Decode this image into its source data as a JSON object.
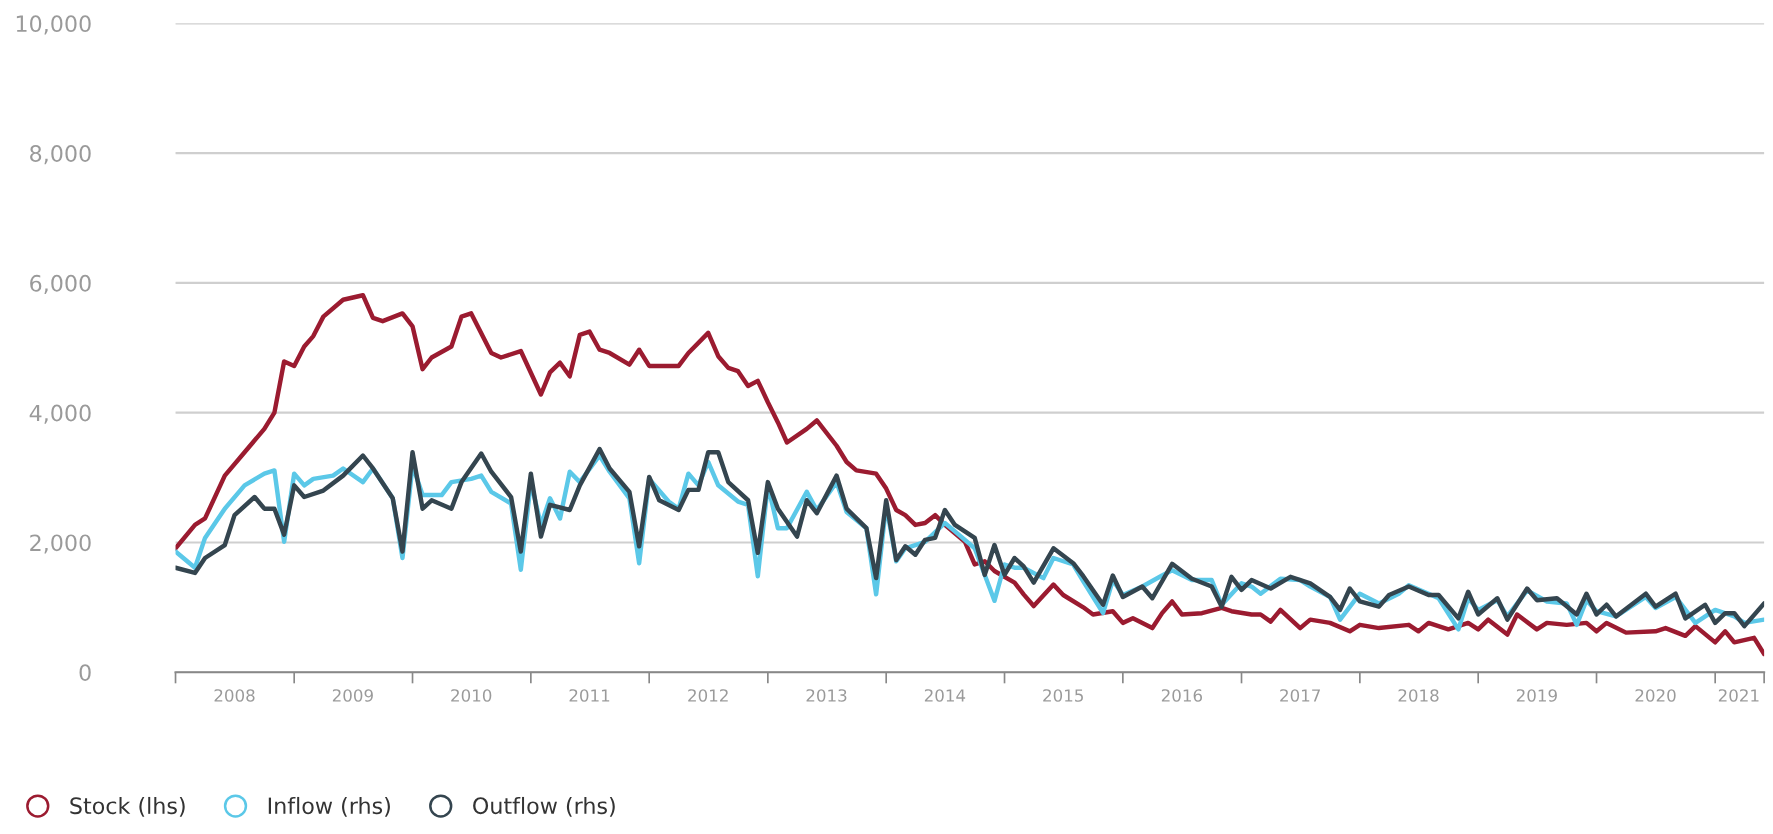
{
  "chart_data": {
    "type": "line",
    "xlim": [
      "2008-01-01",
      "2021-06-01"
    ],
    "xticks": [
      {
        "value": "2008-01-01",
        "label": null
      },
      {
        "value": "2008-07-01",
        "label": "2008"
      },
      {
        "value": "2009-01-01",
        "label": null
      },
      {
        "value": "2009-07-01",
        "label": "2009"
      },
      {
        "value": "2010-01-01",
        "label": null
      },
      {
        "value": "2010-07-01",
        "label": "2010"
      },
      {
        "value": "2011-01-01",
        "label": null
      },
      {
        "value": "2011-07-01",
        "label": "2011"
      },
      {
        "value": "2012-01-01",
        "label": null
      },
      {
        "value": "2012-07-01",
        "label": "2012"
      },
      {
        "value": "2013-01-01",
        "label": null
      },
      {
        "value": "2013-07-01",
        "label": "2013"
      },
      {
        "value": "2014-01-01",
        "label": null
      },
      {
        "value": "2014-07-01",
        "label": "2014"
      },
      {
        "value": "2015-01-01",
        "label": null
      },
      {
        "value": "2015-07-01",
        "label": "2015"
      },
      {
        "value": "2016-01-01",
        "label": null
      },
      {
        "value": "2016-07-01",
        "label": "2016"
      },
      {
        "value": "2017-01-01",
        "label": null
      },
      {
        "value": "2017-07-01",
        "label": "2017"
      },
      {
        "value": "2018-01-01",
        "label": null
      },
      {
        "value": "2018-07-01",
        "label": "2018"
      },
      {
        "value": "2019-01-01",
        "label": null
      },
      {
        "value": "2019-07-01",
        "label": "2019"
      },
      {
        "value": "2020-01-01",
        "label": null
      },
      {
        "value": "2020-07-01",
        "label": "2020"
      },
      {
        "value": "2021-01-01",
        "label": null
      },
      {
        "value": "2021-03-15",
        "label": "2021"
      },
      {
        "value": "2021-06-01",
        "label": null
      }
    ],
    "ylim": [
      0,
      10000
    ],
    "yticks": [
      {
        "value": 0,
        "label": "0"
      },
      {
        "value": 2000,
        "label": "2,000"
      },
      {
        "value": 4000,
        "label": "4,000"
      },
      {
        "value": 6000,
        "label": "6,000"
      },
      {
        "value": 8000,
        "label": "8,000"
      },
      {
        "value": 10000,
        "label": "10,000"
      }
    ],
    "grid": "y",
    "legend": "bottom left",
    "marker": "none",
    "line_style": "solid",
    "series": [
      {
        "name": "Stock (lhs)",
        "color": "#9b1b30",
        "x": [
          "2008-01",
          "2008-03",
          "2008-04",
          "2008-06",
          "2008-08",
          "2008-10",
          "2008-11",
          "2008-12",
          "2009-01",
          "2009-02",
          "2009-03",
          "2009-04",
          "2009-06",
          "2009-08",
          "2009-09",
          "2009-10",
          "2009-12",
          "2010-01",
          "2010-02",
          "2010-03",
          "2010-05",
          "2010-06",
          "2010-07",
          "2010-09",
          "2010-10",
          "2010-12",
          "2011-02",
          "2011-03",
          "2011-04",
          "2011-05",
          "2011-06",
          "2011-07",
          "2011-08",
          "2011-09",
          "2011-11",
          "2011-12",
          "2012-01",
          "2012-04",
          "2012-05",
          "2012-07",
          "2012-08",
          "2012-09",
          "2012-10",
          "2012-11",
          "2012-12",
          "2013-01",
          "2013-02",
          "2013-03",
          "2013-05",
          "2013-06",
          "2013-08",
          "2013-09",
          "2013-10",
          "2013-12",
          "2014-01",
          "2014-02",
          "2014-03",
          "2014-04",
          "2014-05",
          "2014-06",
          "2014-07",
          "2014-09",
          "2014-10",
          "2014-11",
          "2014-12",
          "2015-02",
          "2015-03",
          "2015-04",
          "2015-06",
          "2015-07",
          "2015-09",
          "2015-10",
          "2015-12",
          "2016-01",
          "2016-02",
          "2016-04",
          "2016-05",
          "2016-06",
          "2016-07",
          "2016-09",
          "2016-11",
          "2016-12",
          "2017-02",
          "2017-03",
          "2017-04",
          "2017-05",
          "2017-07",
          "2017-08",
          "2017-10",
          "2017-12",
          "2018-01",
          "2018-03",
          "2018-06",
          "2018-07",
          "2018-08",
          "2018-10",
          "2018-12",
          "2019-01",
          "2019-02",
          "2019-04",
          "2019-05",
          "2019-07",
          "2019-08",
          "2019-10",
          "2019-12",
          "2020-01",
          "2020-02",
          "2020-04",
          "2020-07",
          "2020-08",
          "2020-10",
          "2020-11",
          "2021-01",
          "2021-02",
          "2021-03",
          "2021-05",
          "2021-06"
        ],
        "values": [
          1910,
          2270,
          2370,
          3030,
          3390,
          3750,
          4000,
          4790,
          4720,
          5020,
          5180,
          5480,
          5740,
          5810,
          5460,
          5410,
          5530,
          5330,
          4670,
          4850,
          5020,
          5480,
          5530,
          4920,
          4850,
          4950,
          4280,
          4620,
          4770,
          4560,
          5200,
          5250,
          4970,
          4920,
          4740,
          4970,
          4720,
          4720,
          4920,
          5230,
          4870,
          4690,
          4640,
          4410,
          4490,
          4160,
          3850,
          3540,
          3750,
          3880,
          3490,
          3240,
          3110,
          3060,
          2830,
          2500,
          2420,
          2270,
          2300,
          2420,
          2270,
          2010,
          1660,
          1710,
          1560,
          1380,
          1200,
          1020,
          1350,
          1190,
          1000,
          890,
          940,
          760,
          830,
          680,
          910,
          1090,
          890,
          910,
          990,
          940,
          890,
          890,
          780,
          960,
          680,
          810,
          760,
          630,
          730,
          680,
          730,
          630,
          760,
          660,
          760,
          660,
          810,
          580,
          890,
          660,
          760,
          730,
          760,
          630,
          760,
          610,
          630,
          680,
          560,
          710,
          460,
          630,
          460,
          530,
          280
        ]
      },
      {
        "name": "Inflow (rhs)",
        "color": "#5bc8e8",
        "x": [
          "2008-01",
          "2008-03",
          "2008-04",
          "2008-06",
          "2008-08",
          "2008-10",
          "2008-11",
          "2008-12",
          "2009-01",
          "2009-02",
          "2009-03",
          "2009-05",
          "2009-06",
          "2009-08",
          "2009-09",
          "2009-11",
          "2009-12",
          "2010-01",
          "2010-02",
          "2010-04",
          "2010-05",
          "2010-07",
          "2010-08",
          "2010-09",
          "2010-11",
          "2010-12",
          "2011-01",
          "2011-02",
          "2011-03",
          "2011-04",
          "2011-05",
          "2011-06",
          "2011-08",
          "2011-09",
          "2011-11",
          "2011-12",
          "2012-01",
          "2012-03",
          "2012-04",
          "2012-05",
          "2012-06",
          "2012-07",
          "2012-08",
          "2012-10",
          "2012-11",
          "2012-12",
          "2013-01",
          "2013-02",
          "2013-03",
          "2013-05",
          "2013-06",
          "2013-08",
          "2013-09",
          "2013-11",
          "2013-12",
          "2014-01",
          "2014-02",
          "2014-03",
          "2014-05",
          "2014-07",
          "2014-08",
          "2014-10",
          "2014-12",
          "2015-01",
          "2015-02",
          "2015-03",
          "2015-05",
          "2015-06",
          "2015-08",
          "2015-09",
          "2015-11",
          "2015-12",
          "2016-01",
          "2016-03",
          "2016-05",
          "2016-06",
          "2016-08",
          "2016-10",
          "2016-11",
          "2017-01",
          "2017-02",
          "2017-03",
          "2017-05",
          "2017-07",
          "2017-08",
          "2017-10",
          "2017-11",
          "2018-01",
          "2018-03",
          "2018-05",
          "2018-06",
          "2018-08",
          "2018-09",
          "2018-11",
          "2018-12",
          "2019-01",
          "2019-03",
          "2019-04",
          "2019-06",
          "2019-08",
          "2019-10",
          "2019-11",
          "2019-12",
          "2020-01",
          "2020-03",
          "2020-06",
          "2020-07",
          "2020-09",
          "2020-11",
          "2021-01",
          "2021-03",
          "2021-04",
          "2021-06"
        ],
        "values": [
          1860,
          1610,
          2070,
          2520,
          2880,
          3060,
          3110,
          2010,
          3060,
          2880,
          2980,
          3030,
          3140,
          2930,
          3140,
          2680,
          1760,
          3190,
          2730,
          2730,
          2930,
          2980,
          3030,
          2780,
          2600,
          1580,
          2930,
          2270,
          2680,
          2370,
          3090,
          2930,
          3340,
          3090,
          2680,
          1680,
          2980,
          2630,
          2520,
          3060,
          2880,
          3240,
          2880,
          2630,
          2580,
          1480,
          2880,
          2220,
          2220,
          2780,
          2500,
          2930,
          2470,
          2220,
          1200,
          2580,
          1710,
          1910,
          2010,
          2300,
          2170,
          1910,
          1100,
          1660,
          1610,
          1610,
          1450,
          1760,
          1660,
          1400,
          910,
          1420,
          1190,
          1320,
          1490,
          1570,
          1420,
          1420,
          1040,
          1370,
          1320,
          1210,
          1440,
          1420,
          1320,
          1160,
          810,
          1210,
          1060,
          1210,
          1340,
          1210,
          1140,
          660,
          1140,
          960,
          1110,
          860,
          1260,
          1090,
          1060,
          730,
          1110,
          940,
          860,
          1160,
          990,
          1160,
          760,
          960,
          860,
          760,
          810
        ]
      },
      {
        "name": "Outflow (rhs)",
        "color": "#34454f",
        "x": [
          "2008-01",
          "2008-03",
          "2008-04",
          "2008-06",
          "2008-07",
          "2008-09",
          "2008-10",
          "2008-11",
          "2008-12",
          "2009-01",
          "2009-02",
          "2009-04",
          "2009-06",
          "2009-08",
          "2009-09",
          "2009-11",
          "2009-12",
          "2010-01",
          "2010-02",
          "2010-03",
          "2010-05",
          "2010-06",
          "2010-08",
          "2010-09",
          "2010-11",
          "2010-12",
          "2011-01",
          "2011-02",
          "2011-03",
          "2011-05",
          "2011-06",
          "2011-08",
          "2011-09",
          "2011-11",
          "2011-12",
          "2012-01",
          "2012-02",
          "2012-04",
          "2012-05",
          "2012-06",
          "2012-07",
          "2012-08",
          "2012-09",
          "2012-11",
          "2012-12",
          "2013-01",
          "2013-02",
          "2013-04",
          "2013-05",
          "2013-06",
          "2013-08",
          "2013-09",
          "2013-11",
          "2013-12",
          "2014-01",
          "2014-02",
          "2014-03",
          "2014-04",
          "2014-05",
          "2014-06",
          "2014-07",
          "2014-08",
          "2014-10",
          "2014-11",
          "2014-12",
          "2015-01",
          "2015-02",
          "2015-03",
          "2015-04",
          "2015-06",
          "2015-08",
          "2015-09",
          "2015-11",
          "2015-12",
          "2016-01",
          "2016-03",
          "2016-04",
          "2016-06",
          "2016-08",
          "2016-10",
          "2016-11",
          "2016-12",
          "2017-01",
          "2017-02",
          "2017-04",
          "2017-06",
          "2017-08",
          "2017-10",
          "2017-11",
          "2017-12",
          "2018-01",
          "2018-03",
          "2018-04",
          "2018-06",
          "2018-08",
          "2018-09",
          "2018-11",
          "2018-12",
          "2019-01",
          "2019-03",
          "2019-04",
          "2019-06",
          "2019-07",
          "2019-09",
          "2019-11",
          "2019-12",
          "2020-01",
          "2020-02",
          "2020-03",
          "2020-06",
          "2020-07",
          "2020-09",
          "2020-10",
          "2020-12",
          "2021-01",
          "2021-02",
          "2021-03",
          "2021-04",
          "2021-06"
        ],
        "values": [
          1610,
          1530,
          1760,
          1960,
          2420,
          2700,
          2520,
          2520,
          2120,
          2880,
          2700,
          2800,
          3030,
          3340,
          3140,
          2680,
          1860,
          3390,
          2520,
          2650,
          2520,
          2930,
          3370,
          3090,
          2700,
          1860,
          3060,
          2090,
          2580,
          2500,
          2880,
          3440,
          3140,
          2780,
          1940,
          3010,
          2650,
          2500,
          2810,
          2810,
          3390,
          3390,
          2930,
          2650,
          1840,
          2930,
          2520,
          2090,
          2650,
          2450,
          3030,
          2520,
          2220,
          1450,
          2650,
          1730,
          1940,
          1810,
          2040,
          2070,
          2500,
          2270,
          2070,
          1500,
          1960,
          1500,
          1760,
          1630,
          1380,
          1910,
          1680,
          1480,
          1040,
          1490,
          1160,
          1320,
          1140,
          1670,
          1440,
          1320,
          1010,
          1470,
          1270,
          1420,
          1290,
          1470,
          1370,
          1160,
          960,
          1290,
          1090,
          1010,
          1190,
          1320,
          1190,
          1190,
          830,
          1240,
          890,
          1140,
          810,
          1290,
          1110,
          1140,
          890,
          1210,
          890,
          1040,
          860,
          1210,
          1010,
          1210,
          830,
          1040,
          760,
          910,
          910,
          710,
          1060
        ]
      }
    ]
  }
}
